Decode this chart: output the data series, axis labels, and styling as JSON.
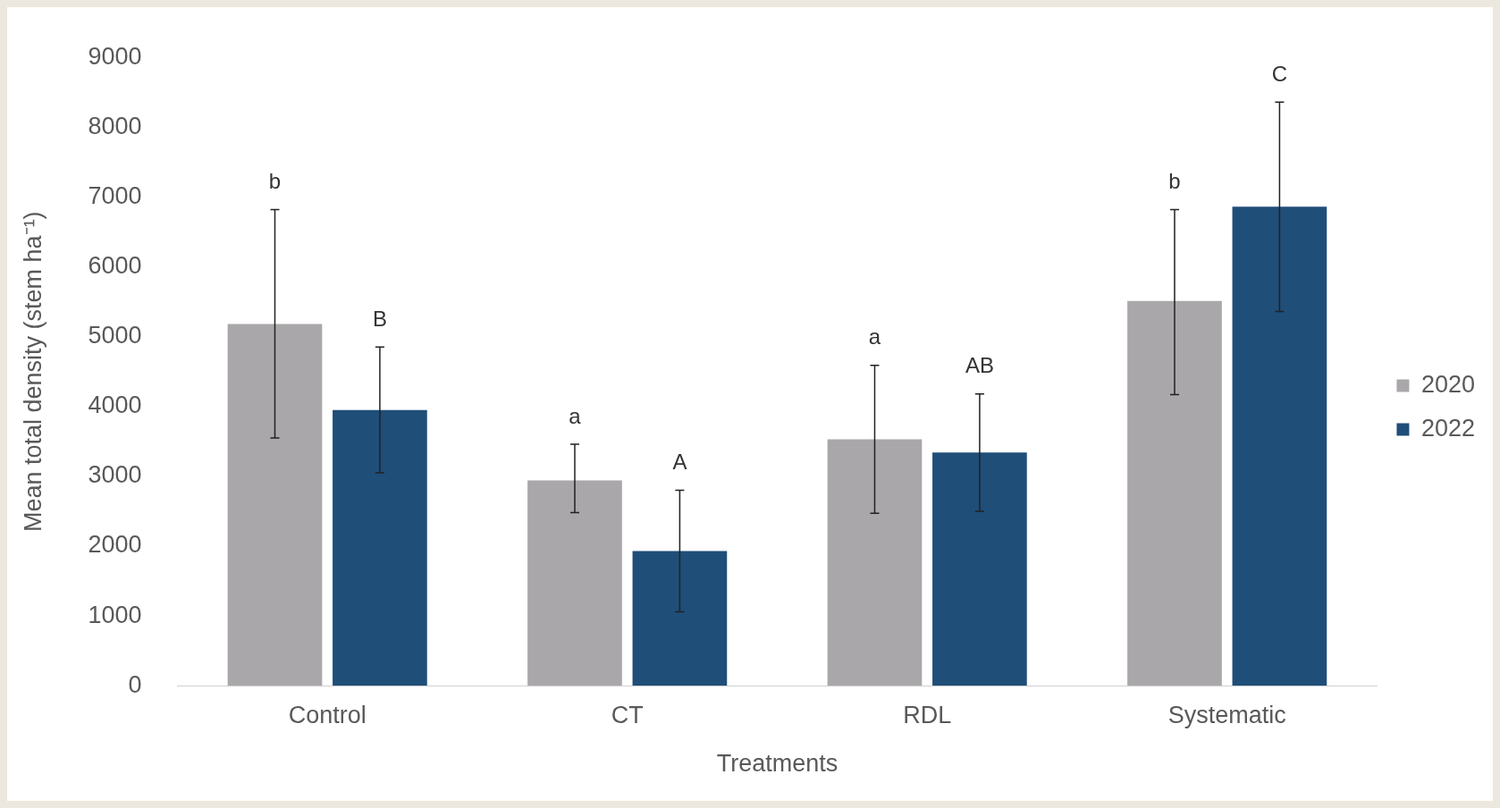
{
  "chart_data": {
    "type": "bar",
    "xlabel": "Treatments",
    "ylabel": "Mean total density (stem ha⁻¹)",
    "categories": [
      "Control",
      "CT",
      "RDL",
      "Systematic"
    ],
    "series": [
      {
        "name": "2020",
        "color": "#a9a7a9",
        "values": [
          5180,
          2940,
          3530,
          5510
        ],
        "errors": [
          [
            3550,
            6820
          ],
          [
            2480,
            3460
          ],
          [
            2470,
            4590
          ],
          [
            4170,
            6820
          ]
        ]
      },
      {
        "name": "2022",
        "color": "#1f4e79",
        "values": [
          3950,
          1930,
          3340,
          6860
        ],
        "errors": [
          [
            3050,
            4850
          ],
          [
            1060,
            2800
          ],
          [
            2500,
            4180
          ],
          [
            5360,
            8360
          ]
        ]
      }
    ],
    "annotations": [
      "b",
      "B",
      "a",
      "A",
      "a",
      "AB",
      "b",
      "C"
    ],
    "ylim": [
      0,
      9000
    ],
    "yticks": [
      0,
      1000,
      2000,
      3000,
      4000,
      5000,
      6000,
      7000,
      8000,
      9000
    ],
    "grid": false,
    "legend": "right"
  }
}
